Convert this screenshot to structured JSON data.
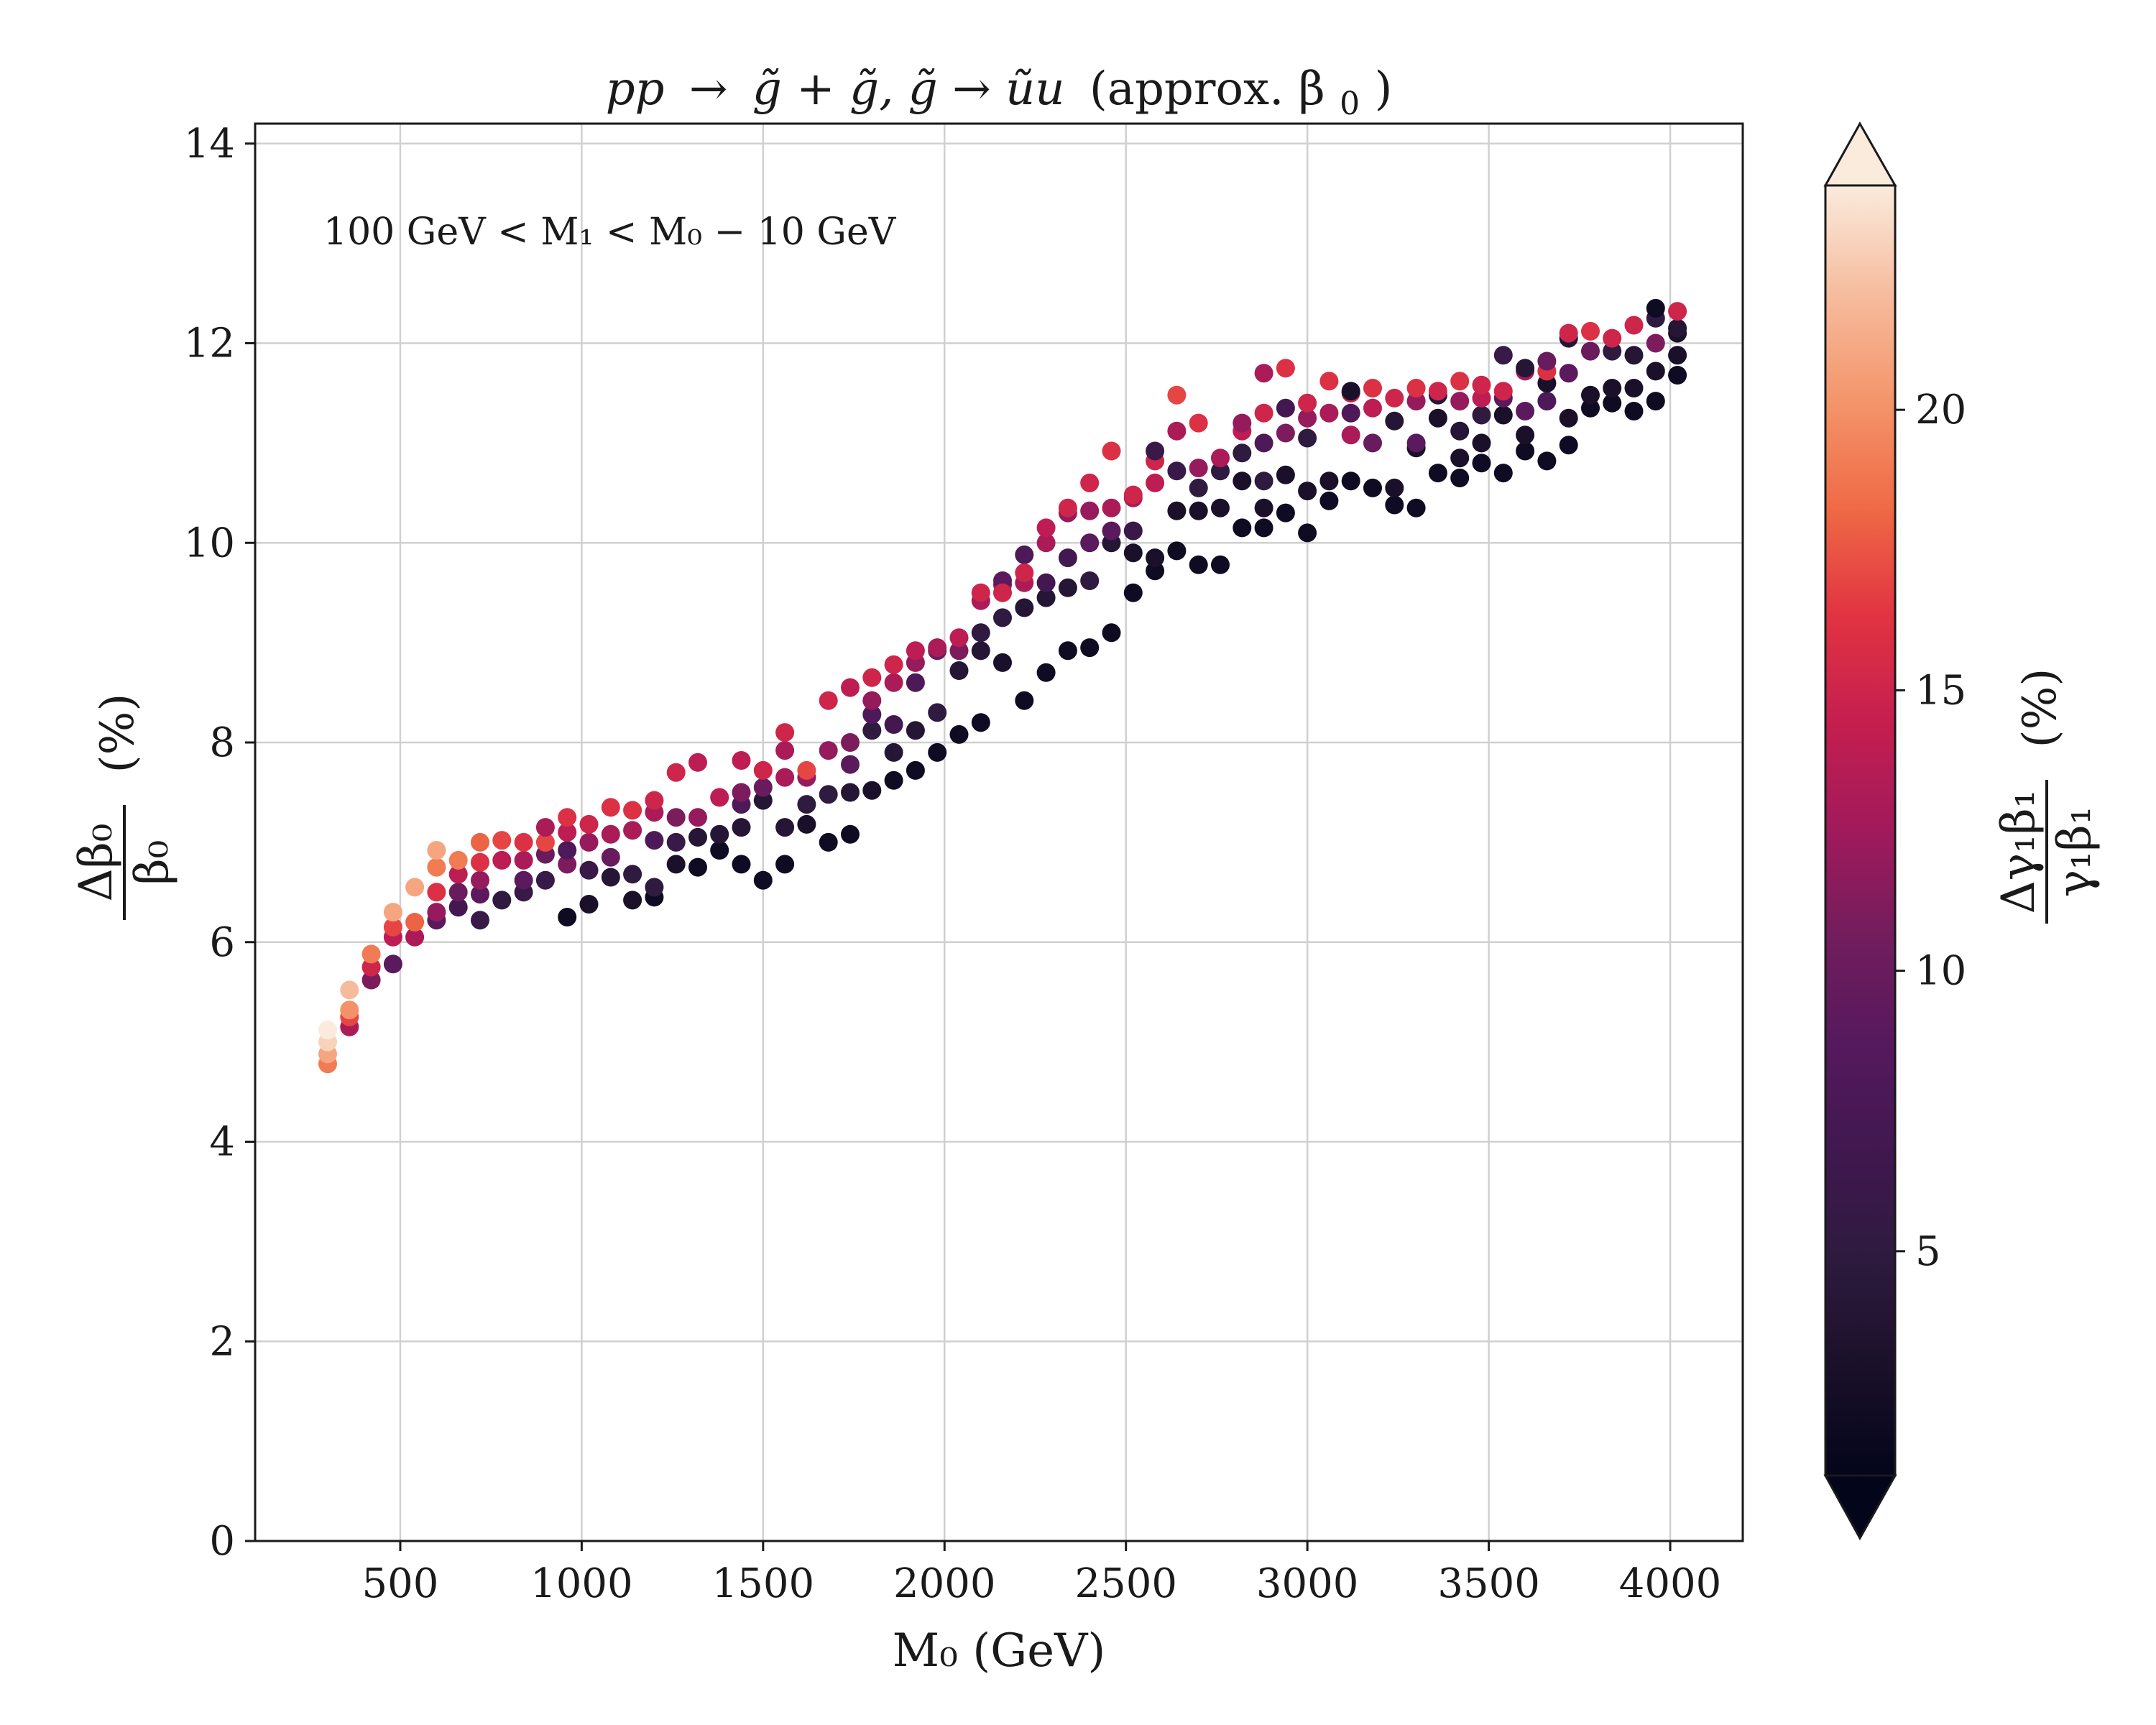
{
  "chart_data": {
    "type": "scatter",
    "title": {
      "lhs": "pp",
      "arrow": "→",
      "rhs": "g̃ + g̃, g̃ → ũu",
      "suffix": "(approx. β",
      "sub": "0",
      "close": ")"
    },
    "annotation": "100 GeV < M₁ < M₀ − 10 GeV",
    "xlabel": "M₀ (GeV)",
    "ylabel": {
      "num": "Δβ₀",
      "den": "β₀",
      "unit": "(%)"
    },
    "colorbar_label": {
      "num": "Δγ₁β₁",
      "den": "γ₁β₁",
      "unit": "(%)"
    },
    "xlim": [
      100,
      4200
    ],
    "ylim": [
      0,
      14.2
    ],
    "xticks": [
      500,
      1000,
      1500,
      2000,
      2500,
      3000,
      3500,
      4000
    ],
    "yticks": [
      0,
      2,
      4,
      6,
      8,
      10,
      12,
      14
    ],
    "clim": [
      1,
      24
    ],
    "cticks": [
      5,
      10,
      15,
      20
    ],
    "colormap": "rocket",
    "grid": true,
    "points": [
      [
        300,
        4.78,
        19
      ],
      [
        300,
        4.88,
        21
      ],
      [
        300,
        5.0,
        23
      ],
      [
        300,
        5.12,
        24
      ],
      [
        360,
        5.15,
        13
      ],
      [
        360,
        5.25,
        17
      ],
      [
        360,
        5.32,
        20
      ],
      [
        360,
        5.52,
        22
      ],
      [
        420,
        5.62,
        11
      ],
      [
        420,
        5.75,
        15
      ],
      [
        420,
        5.88,
        19
      ],
      [
        480,
        5.78,
        9
      ],
      [
        480,
        6.05,
        14
      ],
      [
        480,
        6.15,
        17
      ],
      [
        480,
        6.3,
        21
      ],
      [
        540,
        6.05,
        13
      ],
      [
        540,
        6.2,
        18
      ],
      [
        540,
        6.55,
        21
      ],
      [
        600,
        6.22,
        9
      ],
      [
        600,
        6.3,
        12
      ],
      [
        600,
        6.5,
        16
      ],
      [
        600,
        6.75,
        19
      ],
      [
        600,
        6.92,
        21
      ],
      [
        660,
        6.35,
        7
      ],
      [
        660,
        6.5,
        10
      ],
      [
        660,
        6.68,
        14
      ],
      [
        660,
        6.82,
        19
      ],
      [
        720,
        6.22,
        6
      ],
      [
        720,
        6.48,
        9
      ],
      [
        720,
        6.62,
        12
      ],
      [
        720,
        6.8,
        16
      ],
      [
        720,
        7.0,
        18
      ],
      [
        780,
        6.42,
        5
      ],
      [
        780,
        6.82,
        14
      ],
      [
        780,
        7.02,
        17
      ],
      [
        840,
        6.5,
        6
      ],
      [
        840,
        6.62,
        9
      ],
      [
        840,
        6.82,
        13
      ],
      [
        840,
        7.0,
        16
      ],
      [
        900,
        6.62,
        6
      ],
      [
        900,
        6.88,
        10
      ],
      [
        900,
        7.0,
        17
      ],
      [
        900,
        7.15,
        13
      ],
      [
        960,
        6.25,
        2
      ],
      [
        960,
        6.78,
        11
      ],
      [
        960,
        6.92,
        8
      ],
      [
        960,
        7.1,
        14
      ],
      [
        960,
        7.25,
        16
      ],
      [
        1020,
        6.38,
        3
      ],
      [
        1020,
        6.72,
        6
      ],
      [
        1020,
        7.0,
        12
      ],
      [
        1020,
        7.18,
        15
      ],
      [
        1080,
        6.65,
        4
      ],
      [
        1080,
        6.85,
        10
      ],
      [
        1080,
        7.08,
        13
      ],
      [
        1080,
        7.35,
        16
      ],
      [
        1140,
        6.42,
        3
      ],
      [
        1140,
        6.68,
        5
      ],
      [
        1140,
        7.12,
        13
      ],
      [
        1140,
        7.32,
        16
      ],
      [
        1200,
        6.45,
        2
      ],
      [
        1200,
        6.55,
        5
      ],
      [
        1200,
        7.02,
        8
      ],
      [
        1200,
        7.3,
        13
      ],
      [
        1200,
        7.42,
        15
      ],
      [
        1260,
        6.78,
        3
      ],
      [
        1260,
        7.0,
        6
      ],
      [
        1260,
        7.25,
        11
      ],
      [
        1260,
        7.7,
        15
      ],
      [
        1320,
        6.75,
        2
      ],
      [
        1320,
        7.05,
        4
      ],
      [
        1320,
        7.25,
        12
      ],
      [
        1320,
        7.8,
        14
      ],
      [
        1380,
        6.92,
        2
      ],
      [
        1380,
        7.08,
        4
      ],
      [
        1380,
        7.45,
        14
      ],
      [
        1440,
        6.78,
        2
      ],
      [
        1440,
        7.15,
        4
      ],
      [
        1440,
        7.38,
        8
      ],
      [
        1440,
        7.5,
        11
      ],
      [
        1440,
        7.82,
        14
      ],
      [
        1500,
        6.62,
        2
      ],
      [
        1500,
        7.42,
        4
      ],
      [
        1500,
        7.55,
        10
      ],
      [
        1500,
        7.72,
        15
      ],
      [
        1560,
        6.78,
        2
      ],
      [
        1560,
        7.15,
        4
      ],
      [
        1560,
        7.65,
        13
      ],
      [
        1560,
        7.92,
        13
      ],
      [
        1560,
        8.1,
        15
      ],
      [
        1620,
        7.18,
        3
      ],
      [
        1620,
        7.38,
        5
      ],
      [
        1620,
        7.65,
        12
      ],
      [
        1620,
        7.72,
        17
      ],
      [
        1680,
        7.0,
        2
      ],
      [
        1680,
        7.48,
        5
      ],
      [
        1680,
        7.92,
        12
      ],
      [
        1680,
        8.42,
        15
      ],
      [
        1740,
        7.08,
        2
      ],
      [
        1740,
        7.5,
        4
      ],
      [
        1740,
        7.78,
        9
      ],
      [
        1740,
        8.0,
        11
      ],
      [
        1740,
        8.55,
        14
      ],
      [
        1800,
        7.52,
        3
      ],
      [
        1800,
        8.12,
        5
      ],
      [
        1800,
        8.28,
        8
      ],
      [
        1800,
        8.42,
        12
      ],
      [
        1800,
        8.65,
        15
      ],
      [
        1860,
        7.62,
        2
      ],
      [
        1860,
        7.9,
        4
      ],
      [
        1860,
        8.18,
        7
      ],
      [
        1860,
        8.6,
        13
      ],
      [
        1860,
        8.78,
        15
      ],
      [
        1920,
        7.72,
        2
      ],
      [
        1920,
        8.12,
        4
      ],
      [
        1920,
        8.6,
        8
      ],
      [
        1920,
        8.8,
        12
      ],
      [
        1920,
        8.92,
        14
      ],
      [
        1980,
        7.9,
        2
      ],
      [
        1980,
        8.3,
        5
      ],
      [
        1980,
        8.92,
        10
      ],
      [
        1980,
        8.95,
        13
      ],
      [
        2040,
        8.08,
        2
      ],
      [
        2040,
        8.72,
        4
      ],
      [
        2040,
        8.92,
        11
      ],
      [
        2040,
        9.05,
        14
      ],
      [
        2100,
        8.2,
        2
      ],
      [
        2100,
        8.92,
        4
      ],
      [
        2100,
        9.1,
        5
      ],
      [
        2100,
        9.42,
        13
      ],
      [
        2100,
        9.5,
        15
      ],
      [
        2160,
        8.8,
        3
      ],
      [
        2160,
        9.25,
        5
      ],
      [
        2160,
        9.58,
        12
      ],
      [
        2160,
        9.62,
        9
      ],
      [
        2160,
        9.5,
        15
      ],
      [
        2220,
        8.42,
        2
      ],
      [
        2220,
        9.35,
        4
      ],
      [
        2220,
        9.6,
        13
      ],
      [
        2220,
        9.88,
        8
      ],
      [
        2220,
        9.7,
        15
      ],
      [
        2280,
        8.7,
        2
      ],
      [
        2280,
        9.45,
        4
      ],
      [
        2280,
        9.6,
        7
      ],
      [
        2280,
        10.0,
        13
      ],
      [
        2280,
        10.15,
        14
      ],
      [
        2340,
        8.92,
        2
      ],
      [
        2340,
        9.55,
        4
      ],
      [
        2340,
        9.85,
        7
      ],
      [
        2340,
        10.3,
        12
      ],
      [
        2340,
        10.35,
        15
      ],
      [
        2400,
        8.95,
        2
      ],
      [
        2400,
        9.62,
        5
      ],
      [
        2400,
        10.0,
        9
      ],
      [
        2400,
        10.32,
        12
      ],
      [
        2400,
        10.6,
        15
      ],
      [
        2460,
        9.1,
        2
      ],
      [
        2460,
        10.0,
        4
      ],
      [
        2460,
        10.12,
        9
      ],
      [
        2460,
        10.35,
        13
      ],
      [
        2460,
        10.92,
        16
      ],
      [
        2520,
        9.5,
        2
      ],
      [
        2520,
        9.9,
        3
      ],
      [
        2520,
        10.12,
        6
      ],
      [
        2520,
        10.45,
        13
      ],
      [
        2520,
        10.48,
        15
      ],
      [
        2580,
        9.72,
        2
      ],
      [
        2580,
        9.85,
        3
      ],
      [
        2580,
        10.6,
        14
      ],
      [
        2580,
        10.82,
        15
      ],
      [
        2580,
        10.92,
        6
      ],
      [
        2640,
        9.92,
        2
      ],
      [
        2640,
        10.32,
        3
      ],
      [
        2640,
        10.72,
        6
      ],
      [
        2640,
        11.12,
        13
      ],
      [
        2640,
        11.48,
        17
      ],
      [
        2700,
        9.78,
        2
      ],
      [
        2700,
        10.32,
        3
      ],
      [
        2700,
        10.55,
        5
      ],
      [
        2700,
        10.75,
        12
      ],
      [
        2700,
        11.2,
        16
      ],
      [
        2760,
        9.78,
        2
      ],
      [
        2760,
        10.35,
        3
      ],
      [
        2760,
        10.72,
        5
      ],
      [
        2760,
        10.85,
        13
      ],
      [
        2820,
        10.15,
        2
      ],
      [
        2820,
        10.62,
        3
      ],
      [
        2820,
        10.9,
        5
      ],
      [
        2820,
        11.12,
        14
      ],
      [
        2820,
        11.2,
        12
      ],
      [
        2880,
        10.15,
        2
      ],
      [
        2880,
        10.35,
        3
      ],
      [
        2880,
        10.62,
        5
      ],
      [
        2880,
        11.0,
        8
      ],
      [
        2880,
        11.3,
        15
      ],
      [
        2880,
        11.7,
        13
      ],
      [
        2940,
        10.3,
        2
      ],
      [
        2940,
        10.68,
        3
      ],
      [
        2940,
        11.1,
        11
      ],
      [
        2940,
        11.35,
        7
      ],
      [
        2940,
        11.75,
        16
      ],
      [
        3000,
        10.1,
        2
      ],
      [
        3000,
        10.52,
        3
      ],
      [
        3000,
        11.05,
        5
      ],
      [
        3000,
        11.25,
        12
      ],
      [
        3000,
        11.4,
        15
      ],
      [
        3060,
        10.42,
        2
      ],
      [
        3060,
        10.62,
        3
      ],
      [
        3060,
        11.3,
        13
      ],
      [
        3060,
        11.62,
        16
      ],
      [
        3120,
        10.62,
        2
      ],
      [
        3120,
        11.08,
        13
      ],
      [
        3120,
        11.3,
        8
      ],
      [
        3120,
        11.5,
        15
      ],
      [
        3120,
        11.52,
        3
      ],
      [
        3180,
        10.55,
        2
      ],
      [
        3180,
        11.0,
        10
      ],
      [
        3180,
        11.35,
        14
      ],
      [
        3180,
        11.55,
        16
      ],
      [
        3240,
        10.38,
        2
      ],
      [
        3240,
        10.55,
        3
      ],
      [
        3240,
        11.22,
        4
      ],
      [
        3240,
        11.45,
        15
      ],
      [
        3300,
        10.35,
        2
      ],
      [
        3300,
        10.95,
        3
      ],
      [
        3300,
        11.0,
        9
      ],
      [
        3300,
        11.42,
        12
      ],
      [
        3300,
        11.55,
        16
      ],
      [
        3360,
        10.7,
        2
      ],
      [
        3360,
        11.25,
        3
      ],
      [
        3360,
        11.48,
        4
      ],
      [
        3360,
        11.52,
        15
      ],
      [
        3420,
        10.65,
        2
      ],
      [
        3420,
        10.85,
        3
      ],
      [
        3420,
        11.12,
        4
      ],
      [
        3420,
        11.42,
        12
      ],
      [
        3420,
        11.62,
        16
      ],
      [
        3480,
        10.8,
        2
      ],
      [
        3480,
        11.0,
        3
      ],
      [
        3480,
        11.28,
        5
      ],
      [
        3480,
        11.45,
        14
      ],
      [
        3480,
        11.58,
        15
      ],
      [
        3540,
        10.7,
        2
      ],
      [
        3540,
        11.28,
        3
      ],
      [
        3540,
        11.45,
        9
      ],
      [
        3540,
        11.52,
        15
      ],
      [
        3540,
        11.88,
        6
      ],
      [
        3600,
        10.92,
        2
      ],
      [
        3600,
        11.08,
        3
      ],
      [
        3600,
        11.32,
        9
      ],
      [
        3600,
        11.72,
        13
      ],
      [
        3600,
        11.75,
        4
      ],
      [
        3660,
        10.82,
        2
      ],
      [
        3660,
        11.42,
        8
      ],
      [
        3660,
        11.6,
        3
      ],
      [
        3660,
        11.72,
        16
      ],
      [
        3660,
        11.82,
        10
      ],
      [
        3720,
        10.98,
        2
      ],
      [
        3720,
        11.25,
        3
      ],
      [
        3720,
        11.7,
        9
      ],
      [
        3720,
        12.05,
        4
      ],
      [
        3720,
        12.1,
        15
      ],
      [
        3780,
        11.35,
        2
      ],
      [
        3780,
        11.48,
        3
      ],
      [
        3780,
        11.92,
        10
      ],
      [
        3780,
        12.12,
        16
      ],
      [
        3840,
        11.4,
        2
      ],
      [
        3840,
        11.55,
        3
      ],
      [
        3840,
        11.92,
        5
      ],
      [
        3840,
        12.05,
        15
      ],
      [
        3900,
        11.32,
        2
      ],
      [
        3900,
        11.55,
        3
      ],
      [
        3900,
        11.88,
        4
      ],
      [
        3900,
        12.18,
        15
      ],
      [
        3960,
        11.42,
        2
      ],
      [
        3960,
        11.72,
        3
      ],
      [
        3960,
        12.0,
        11
      ],
      [
        3960,
        12.25,
        5
      ],
      [
        3960,
        12.35,
        2
      ],
      [
        4020,
        11.68,
        2
      ],
      [
        4020,
        11.88,
        3
      ],
      [
        4020,
        12.1,
        3
      ],
      [
        4020,
        12.15,
        4
      ],
      [
        4020,
        12.32,
        15
      ]
    ]
  }
}
